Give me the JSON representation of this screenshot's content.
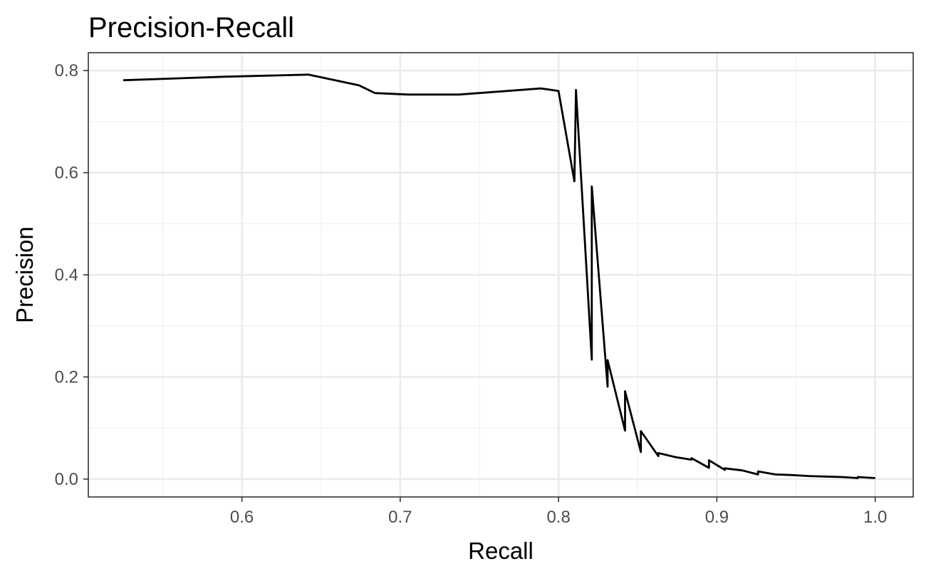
{
  "chart_data": {
    "type": "line",
    "title": "Precision-Recall",
    "xlabel": "Recall",
    "ylabel": "Precision",
    "xlim": [
      0.503,
      1.024
    ],
    "ylim": [
      -0.035,
      0.835
    ],
    "x_ticks": [
      0.6,
      0.7,
      0.8,
      0.9,
      1.0
    ],
    "x_tick_labels": [
      "0.6",
      "0.7",
      "0.8",
      "0.9",
      "1.0"
    ],
    "x_minor_ticks": [
      0.55,
      0.65,
      0.75,
      0.85,
      0.95
    ],
    "y_ticks": [
      0.0,
      0.2,
      0.4,
      0.6,
      0.8
    ],
    "y_tick_labels": [
      "0.0",
      "0.2",
      "0.4",
      "0.6",
      "0.8"
    ],
    "y_minor_ticks": [
      0.1,
      0.3,
      0.5,
      0.7
    ],
    "grid": true,
    "series": [
      {
        "color": "#000000",
        "x": [
          0.525,
          0.59,
          0.642,
          0.674,
          0.684,
          0.705,
          0.737,
          0.789,
          0.8,
          0.81,
          0.811,
          0.821,
          0.821,
          0.831,
          0.831,
          0.842,
          0.842,
          0.852,
          0.852,
          0.863,
          0.863,
          0.874,
          0.884,
          0.884,
          0.895,
          0.895,
          0.905,
          0.905,
          0.916,
          0.926,
          0.926,
          0.937,
          0.947,
          0.958,
          0.968,
          0.979,
          0.989,
          0.989,
          1.0
        ],
        "y": [
          0.781,
          0.788,
          0.792,
          0.771,
          0.756,
          0.753,
          0.753,
          0.765,
          0.76,
          0.583,
          0.762,
          0.234,
          0.573,
          0.181,
          0.233,
          0.095,
          0.172,
          0.053,
          0.094,
          0.045,
          0.051,
          0.043,
          0.038,
          0.041,
          0.022,
          0.037,
          0.018,
          0.021,
          0.017,
          0.009,
          0.015,
          0.009,
          0.008,
          0.006,
          0.005,
          0.004,
          0.002,
          0.004,
          0.002
        ]
      }
    ]
  }
}
